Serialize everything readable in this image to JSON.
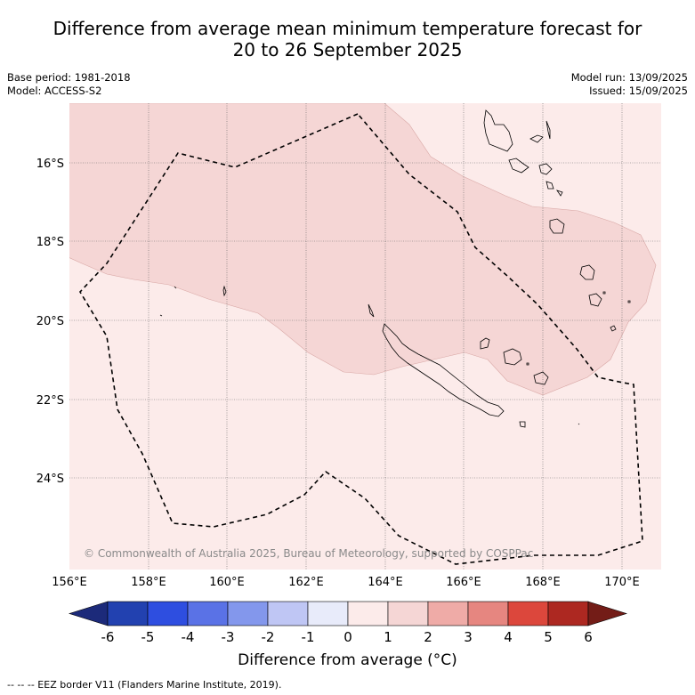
{
  "title": {
    "line1": "Difference from average mean minimum temperature forecast for",
    "line2": "20 to 26 September 2025"
  },
  "meta_left": {
    "base_period": "Base period: 1981-2018",
    "model": "Model: ACCESS-S2"
  },
  "meta_right": {
    "model_run": "Model run: 13/09/2025",
    "issued": "Issued: 15/09/2025"
  },
  "map": {
    "lat_labels": [
      "16°S",
      "18°S",
      "20°S",
      "22°S",
      "24°S"
    ],
    "lon_labels": [
      "156°E",
      "158°E",
      "160°E",
      "162°E",
      "164°E",
      "166°E",
      "168°E",
      "170°E"
    ],
    "copyright": "© Commonwealth of Australia 2025, Bureau of Meteorology, supported by COSPPac",
    "fill_colors": {
      "zero_to_one": "#fcebea",
      "one_to_two": "#f5d6d5",
      "gridline": "#555555"
    },
    "landmasses": [
      "New Caledonia",
      "Loyalty Islands",
      "Vanuatu",
      "Chesterfield Islands"
    ]
  },
  "colorbar": {
    "ticks": [
      "-6",
      "-5",
      "-4",
      "-3",
      "-2",
      "-1",
      "0",
      "1",
      "2",
      "3",
      "4",
      "5",
      "6"
    ],
    "colors": [
      "#1c2a7a",
      "#2241b0",
      "#2e4ee0",
      "#5a72e6",
      "#8397ec",
      "#bfc6f4",
      "#e8ebfa",
      "#fcebea",
      "#f5d6d5",
      "#efaba7",
      "#e68680",
      "#dc473c",
      "#ad2821",
      "#731c17"
    ],
    "title": "Difference from average (°C)"
  },
  "footnote": "--  --  -- EEZ border V11 (Flanders Marine Institute, 2019)."
}
